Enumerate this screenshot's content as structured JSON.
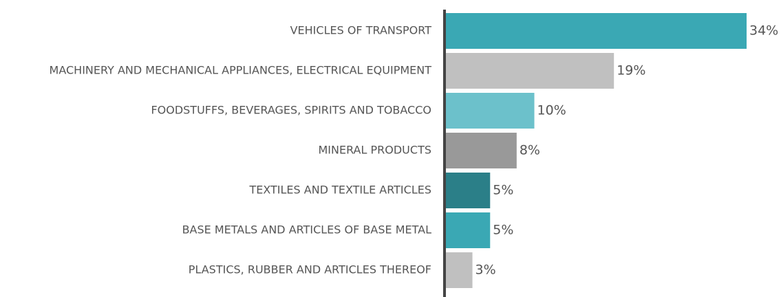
{
  "chart_data": {
    "type": "bar",
    "orientation": "horizontal",
    "categories": [
      "VEHICLES OF TRANSPORT",
      "MACHINERY AND MECHANICAL APPLIANCES, ELECTRICAL EQUIPMENT",
      "FOODSTUFFS, BEVERAGES, SPIRITS AND TOBACCO",
      "MINERAL PRODUCTS",
      "TEXTILES AND TEXTILE ARTICLES",
      "BASE METALS AND ARTICLES OF BASE METAL",
      "PLASTICS, RUBBER AND ARTICLES THEREOF"
    ],
    "values": [
      34,
      19,
      10,
      8,
      5,
      5,
      3
    ],
    "value_labels": [
      "34%",
      "19%",
      "10%",
      "8%",
      "5%",
      "5%",
      "3%"
    ],
    "colors": [
      "#3aa8b4",
      "#c0c0c0",
      "#6cc1cb",
      "#999999",
      "#2b7f88",
      "#3aa8b4",
      "#c0c0c0"
    ]
  }
}
